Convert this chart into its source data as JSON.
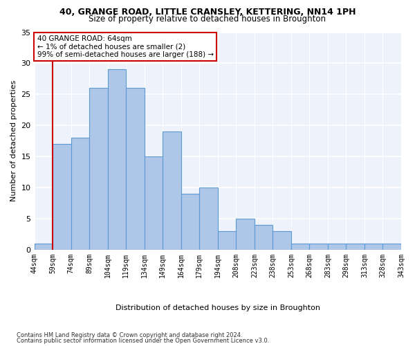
{
  "title1": "40, GRANGE ROAD, LITTLE CRANSLEY, KETTERING, NN14 1PH",
  "title2": "Size of property relative to detached houses in Broughton",
  "xlabel": "Distribution of detached houses by size in Broughton",
  "ylabel": "Number of detached properties",
  "footnote1": "Contains HM Land Registry data © Crown copyright and database right 2024.",
  "footnote2": "Contains public sector information licensed under the Open Government Licence v3.0.",
  "annotation_title": "40 GRANGE ROAD: 64sqm",
  "annotation_line1": "← 1% of detached houses are smaller (2)",
  "annotation_line2": "99% of semi-detached houses are larger (188) →",
  "bar_values": [
    1,
    17,
    18,
    26,
    29,
    26,
    15,
    19,
    9,
    10,
    3,
    5,
    4,
    3,
    1,
    1,
    1,
    1,
    1,
    1
  ],
  "bar_labels": [
    "44sqm",
    "59sqm",
    "74sqm",
    "89sqm",
    "104sqm",
    "119sqm",
    "134sqm",
    "149sqm",
    "164sqm",
    "179sqm",
    "194sqm",
    "208sqm",
    "223sqm",
    "238sqm",
    "253sqm",
    "268sqm",
    "283sqm",
    "298sqm",
    "313sqm",
    "328sqm",
    "343sqm"
  ],
  "bar_color": "#aec6e8",
  "bar_edge_color": "#5b9bd5",
  "background_color": "#eef3fb",
  "grid_color": "#ffffff",
  "vline_color": "#cc0000",
  "annotation_box_color": "#cc0000",
  "ylim": [
    0,
    35
  ],
  "yticks": [
    0,
    5,
    10,
    15,
    20,
    25,
    30,
    35
  ]
}
